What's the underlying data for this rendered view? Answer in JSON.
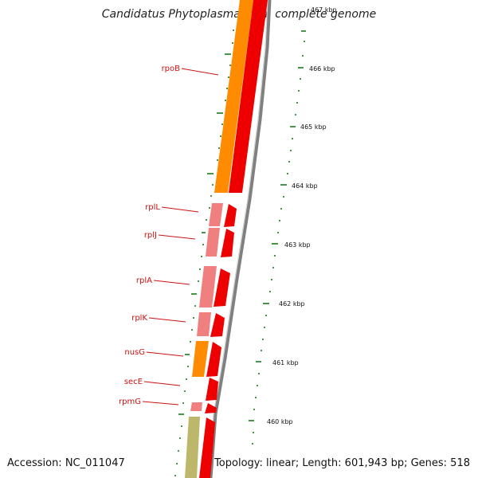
{
  "title": "Candidatus Phytoplasma mali, complete genome",
  "accession": "Accession: NC_011047",
  "summary": "Topology: linear; Length: 601,943 bp; Genes: 518",
  "ticks": [
    "467 kbp",
    "466 kbp",
    "465 kbp",
    "464 kbp",
    "463 kbp",
    "462 kbp",
    "461 kbp",
    "460 kbp"
  ],
  "genes": [
    "rpoB",
    "rplL",
    "rplJ",
    "rplA",
    "rplK",
    "nusG",
    "secE",
    "rpmG"
  ],
  "colors": {
    "cds_red": "#ee0000",
    "gene_orange": "#ff8c00",
    "gene_pink": "#f08080",
    "gene_khaki": "#bdb76b",
    "backbone_gray": "#808080",
    "tick_green": "#1a7a1a",
    "label_red": "#cc1111"
  }
}
